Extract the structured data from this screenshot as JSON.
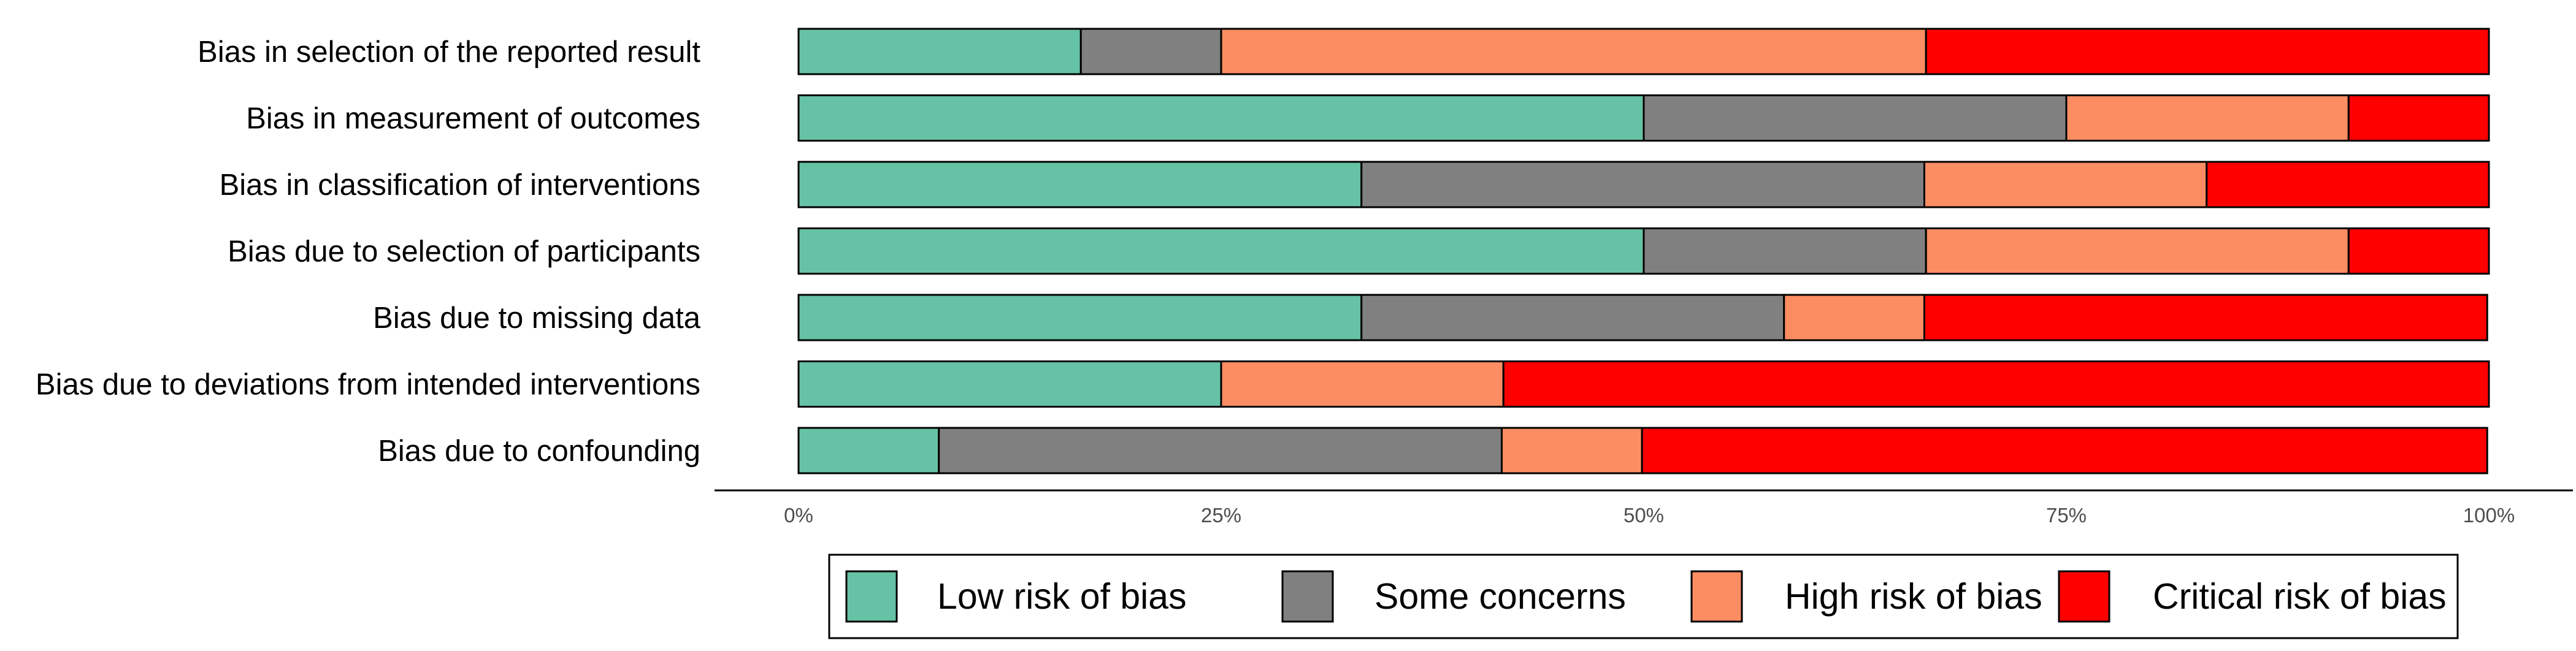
{
  "chart_data": {
    "type": "bar",
    "orientation": "horizontal",
    "stacked": true,
    "percent": true,
    "categories": [
      "Bias in selection of the reported result",
      "Bias in measurement of outcomes",
      "Bias in classification of interventions",
      "Bias due to selection of participants",
      "Bias due to missing data",
      "Bias due to deviations from intended interventions",
      "Bias due to confounding"
    ],
    "series": [
      {
        "name": "Low risk of bias",
        "color": "#66C2A5",
        "values": [
          16.7,
          50.0,
          33.3,
          50.0,
          33.3,
          25.0,
          8.3
        ]
      },
      {
        "name": "Some concerns",
        "color": "#808080",
        "values": [
          8.3,
          25.0,
          33.3,
          16.7,
          25.0,
          0.0,
          33.3
        ]
      },
      {
        "name": "High risk of bias",
        "color": "#FC8D62",
        "values": [
          41.7,
          16.7,
          16.7,
          25.0,
          8.3,
          16.7,
          8.3
        ]
      },
      {
        "name": "Critical risk of bias",
        "color": "#FF0000",
        "values": [
          33.3,
          8.3,
          16.7,
          8.3,
          33.3,
          58.3,
          50.0
        ]
      }
    ],
    "xlim": [
      0,
      100
    ],
    "xticks": [
      "0%",
      "25%",
      "50%",
      "75%",
      "100%"
    ],
    "xlabel": "",
    "ylabel": "",
    "title": "",
    "grid": false,
    "legend_position": "bottom"
  }
}
